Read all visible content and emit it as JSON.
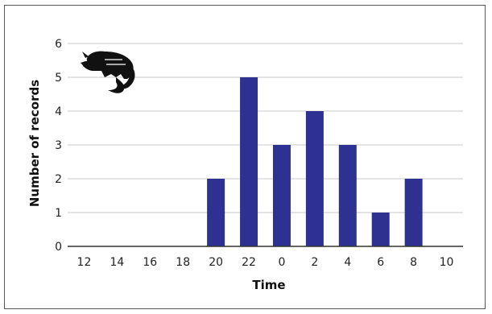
{
  "chart_data": {
    "type": "bar",
    "title": "",
    "xlabel": "Time",
    "ylabel": "Number of records",
    "categories": [
      "12",
      "14",
      "16",
      "18",
      "20",
      "22",
      "0",
      "2",
      "4",
      "6",
      "8",
      "10"
    ],
    "values": [
      0,
      0,
      0,
      0,
      2,
      5,
      3,
      4,
      3,
      1,
      2,
      0
    ],
    "ylim": [
      0,
      6
    ],
    "yticks": [
      "0",
      "1",
      "2",
      "3",
      "4",
      "5",
      "6"
    ],
    "grid": true,
    "legend": "none",
    "bar_color": "#2e3192",
    "grid_color": "#c8c8c8",
    "axis_color": "#333333"
  },
  "icon": "armadillo-silhouette-icon"
}
